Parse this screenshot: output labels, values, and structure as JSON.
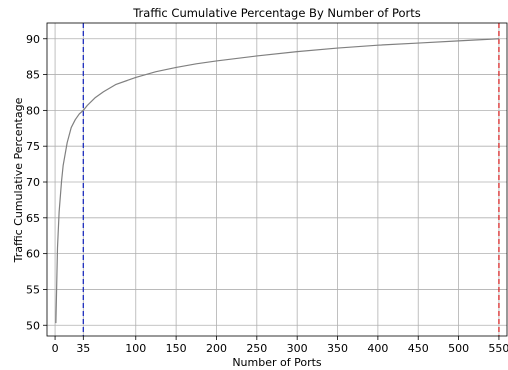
{
  "chart_data": {
    "type": "line",
    "title": "Traffic Cumulative Percentage By Number of Ports",
    "xlabel": "Number of Ports",
    "ylabel": "Traffic Cumulative Percentage",
    "xlim": [
      -10,
      560
    ],
    "ylim": [
      48.5,
      92.2
    ],
    "grid": true,
    "xticks": [
      0,
      35,
      100,
      150,
      200,
      250,
      300,
      350,
      400,
      450,
      500,
      550
    ],
    "yticks": [
      50,
      55,
      60,
      65,
      70,
      75,
      80,
      85,
      90
    ],
    "series": [
      {
        "color": "#808080",
        "x": [
          1,
          3,
          5,
          8,
          10,
          15,
          20,
          25,
          30,
          35,
          40,
          50,
          60,
          75,
          100,
          125,
          150,
          175,
          200,
          250,
          300,
          350,
          400,
          450,
          500,
          550
        ],
        "y": [
          50.3,
          60.8,
          65.8,
          70.1,
          72.3,
          75.5,
          77.6,
          78.7,
          79.5,
          80.0,
          80.7,
          81.8,
          82.6,
          83.6,
          84.6,
          85.4,
          86.0,
          86.5,
          86.9,
          87.6,
          88.2,
          88.7,
          89.1,
          89.4,
          89.7,
          90.0
        ]
      }
    ],
    "reference_lines": [
      {
        "x": 35,
        "color": "#1f2fbf",
        "style": "dashed"
      },
      {
        "x": 550,
        "color": "#d62728",
        "style": "dashed"
      }
    ]
  }
}
